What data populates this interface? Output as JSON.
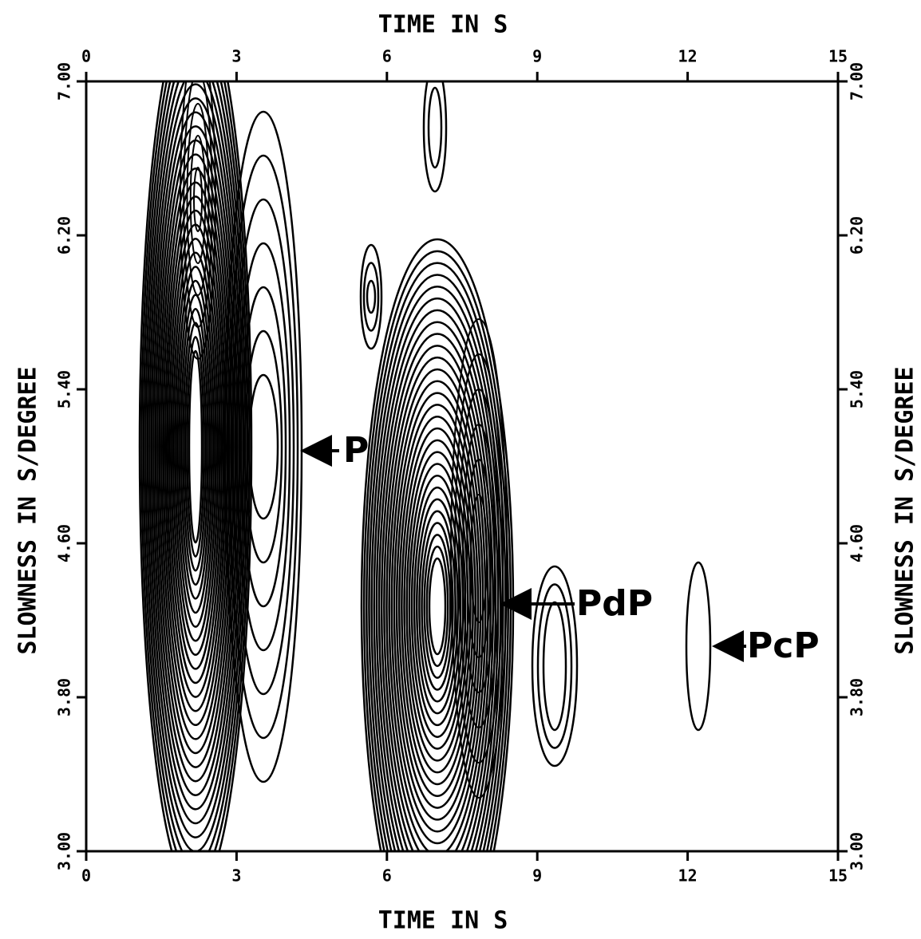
{
  "chart_data": {
    "type": "contour",
    "xlabel": "TIME IN S",
    "ylabel": "SLOWNESS IN S/DEGREE",
    "xlim": [
      0,
      15
    ],
    "xticks": [
      0,
      3,
      6,
      9,
      12,
      15
    ],
    "ylim": [
      3,
      7
    ],
    "yticks": [
      {
        "value": 3,
        "label": "3.00"
      },
      {
        "value": 3.8,
        "label": "3.80"
      },
      {
        "value": 4.6,
        "label": "4.60"
      },
      {
        "value": 5.4,
        "label": "5.40"
      },
      {
        "value": 6.2,
        "label": "6.20"
      },
      {
        "value": 7,
        "label": "7.00"
      }
    ],
    "annotations": [
      "P",
      "PdP",
      "PcP"
    ],
    "color": "#000000"
  }
}
